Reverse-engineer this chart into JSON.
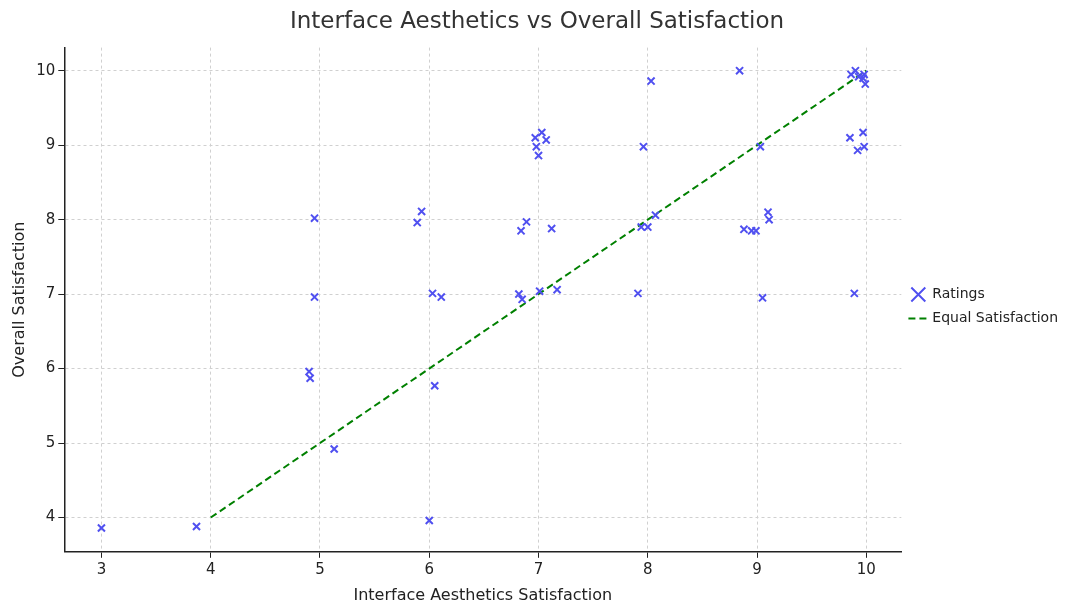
{
  "chart_data": {
    "type": "scatter",
    "title": "Interface Aesthetics vs Overall Satisfaction",
    "xlabel": "Interface Aesthetics Satisfaction",
    "ylabel": "Overall Satisfaction",
    "xlim": [
      2.66,
      10.32
    ],
    "ylim": [
      3.54,
      10.31
    ],
    "xticks": [
      3,
      4,
      5,
      6,
      7,
      8,
      9,
      10
    ],
    "yticks": [
      4,
      5,
      6,
      7,
      8,
      9,
      10
    ],
    "grid": true,
    "legend": "right",
    "series": [
      {
        "name": "Ratings",
        "marker": "cross",
        "color": "#5050f0",
        "x": [
          3.0,
          3.87,
          5.13,
          6.0,
          4.9,
          4.91,
          6.05,
          4.95,
          6.03,
          6.11,
          4.95,
          5.93,
          5.89,
          6.82,
          6.85,
          7.01,
          7.17,
          6.84,
          6.89,
          7.12,
          6.97,
          7.03,
          7.07,
          6.98,
          7.0,
          7.96,
          8.03,
          8.84,
          7.91,
          7.94,
          8.0,
          8.07,
          8.88,
          8.95,
          8.99,
          9.1,
          9.11,
          9.03,
          9.05,
          9.89,
          9.85,
          9.97,
          9.92,
          9.98,
          9.86,
          9.9,
          9.93,
          9.97,
          9.99,
          9.98
        ],
        "values": [
          3.86,
          3.88,
          4.92,
          3.96,
          5.96,
          5.87,
          5.77,
          6.96,
          7.01,
          6.96,
          8.02,
          8.11,
          7.96,
          7.0,
          6.93,
          7.04,
          7.06,
          7.85,
          7.97,
          7.88,
          9.1,
          9.17,
          9.07,
          8.98,
          8.86,
          8.98,
          9.86,
          10.0,
          7.01,
          7.9,
          7.9,
          8.06,
          7.87,
          7.85,
          7.85,
          8.1,
          8.0,
          8.98,
          6.95,
          7.01,
          9.1,
          9.17,
          8.93,
          8.98,
          9.95,
          10.0,
          9.92,
          9.9,
          9.82,
          9.95
        ]
      },
      {
        "name": "Equal Satisfaction",
        "type": "line",
        "line_style": "dashed",
        "marker": "none",
        "color": "#008000",
        "x": [
          4,
          10
        ],
        "values": [
          4,
          10
        ]
      }
    ]
  }
}
